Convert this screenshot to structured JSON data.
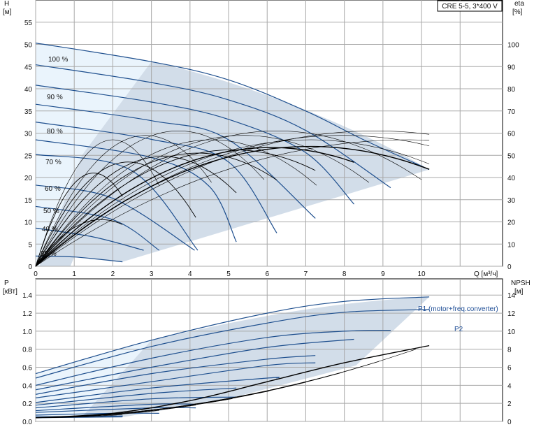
{
  "chart_data": [
    {
      "type": "line",
      "title": "CRE 5-5, 3*400 V",
      "xlabel": "Q [м³/ч]",
      "ylabel_left": "H [м]",
      "ylabel_right": "eta [%]",
      "x_ticks": [
        0,
        1,
        2,
        3,
        4,
        5,
        6,
        7,
        8,
        9,
        10
      ],
      "y_ticks": [
        0,
        5,
        10,
        15,
        20,
        25,
        30,
        35,
        40,
        45,
        50,
        55
      ],
      "eta_ticks": [
        0,
        10,
        20,
        30,
        40,
        50,
        60,
        70,
        80,
        90,
        100
      ],
      "xlim": [
        0,
        12.1
      ],
      "ylim": [
        0,
        60
      ],
      "eta_lim": [
        0,
        120
      ],
      "grid": true,
      "speeds": [
        "100 %",
        "90 %",
        "80 %",
        "70 %",
        "60 %",
        "50 %",
        "40 %",
        "30 %"
      ],
      "head_curves": [
        {
          "speed": 100,
          "points": [
            [
              0,
              50.3
            ],
            [
              3,
              46.1
            ],
            [
              5,
              42
            ],
            [
              7,
              35
            ],
            [
              8.5,
              28.5
            ],
            [
              10.2,
              21.8
            ]
          ]
        },
        {
          "speed": 95,
          "points": [
            [
              0,
              45.4
            ],
            [
              3,
              41.4
            ],
            [
              5,
              37.5
            ],
            [
              7,
              30.6
            ],
            [
              9.2,
              17.7
            ]
          ]
        },
        {
          "speed": 90,
          "points": [
            [
              0,
              40.8
            ],
            [
              3,
              37
            ],
            [
              5,
              33.1
            ],
            [
              7,
              25.6
            ],
            [
              8.25,
              14
            ]
          ]
        },
        {
          "speed": 85,
          "points": [
            [
              0,
              36.5
            ],
            [
              3,
              32.8
            ],
            [
              5,
              28.5
            ],
            [
              7.25,
              10.8
            ]
          ]
        },
        {
          "speed": 80,
          "points": [
            [
              0,
              32.5
            ],
            [
              3,
              28.6
            ],
            [
              5,
              23.5
            ],
            [
              6.25,
              7.5
            ]
          ]
        },
        {
          "speed": 75,
          "points": [
            [
              0,
              28.5
            ],
            [
              3,
              24.5
            ],
            [
              4.5,
              18
            ],
            [
              5.2,
              5.5
            ]
          ]
        },
        {
          "speed": 70,
          "points": [
            [
              0,
              25.2
            ],
            [
              2.5,
              21.5
            ],
            [
              4.2,
              3.6
            ]
          ]
        },
        {
          "speed": 60,
          "points": [
            [
              0,
              18.3
            ],
            [
              2,
              15.3
            ],
            [
              4.12,
              3.6
            ]
          ]
        },
        {
          "speed": 50,
          "points": [
            [
              0,
              13.5
            ],
            [
              2,
              10.5
            ],
            [
              3.2,
              3.6
            ]
          ]
        },
        {
          "speed": 40,
          "points": [
            [
              0,
              8.6
            ],
            [
              1.5,
              6.6
            ],
            [
              2.8,
              3.6
            ]
          ]
        },
        {
          "speed": 30,
          "points": [
            [
              0,
              2.3
            ],
            [
              1,
              2.1
            ],
            [
              2.25,
              1
            ]
          ]
        }
      ],
      "eta_curves_peak": [
        {
          "speed": 100,
          "peak_eta": 54,
          "peak_q": 7.1,
          "end_q": 10.2
        },
        {
          "speed": 90,
          "peak_eta": 53.5,
          "peak_q": 6.1,
          "end_q": 8.25
        },
        {
          "speed": 80,
          "peak_eta": 52.5,
          "peak_q": 5.1,
          "end_q": 7.25
        },
        {
          "speed": 70,
          "peak_eta": 51,
          "peak_q": 4.2,
          "end_q": 6.25
        },
        {
          "speed": 60,
          "peak_eta": 49.5,
          "peak_q": 3.3,
          "end_q": 5.2
        },
        {
          "speed": 50,
          "peak_eta": 47,
          "peak_q": 2.4,
          "end_q": 4.15
        },
        {
          "speed": 40,
          "peak_eta": 42,
          "peak_q": 1.5,
          "end_q": 2.25
        },
        {
          "speed": 30,
          "peak_eta": 21,
          "peak_q": 1.7,
          "end_q": 2.25
        }
      ]
    },
    {
      "type": "line",
      "xlabel": "",
      "ylabel_left": "P [кВт]",
      "ylabel_right": "NPSH [м]",
      "x_ticks": [
        0,
        1,
        2,
        3,
        4,
        5,
        6,
        7,
        8,
        9,
        10
      ],
      "p_ticks": [
        0.0,
        0.2,
        0.4,
        0.6,
        0.8,
        1.0,
        1.2,
        1.4
      ],
      "npsh_ticks": [
        0,
        2,
        4,
        6,
        8,
        10,
        12,
        14
      ],
      "xlim": [
        0,
        12.1
      ],
      "p_lim": [
        0,
        1.58
      ],
      "npsh_lim": [
        0,
        15.8
      ],
      "grid": true,
      "labels": [
        "P1 (motor+freq.converter)",
        "P2"
      ],
      "power_curves": [
        {
          "points": [
            [
              0,
              0.53
            ],
            [
              3,
              0.9
            ],
            [
              6,
              1.2
            ],
            [
              8,
              1.33
            ],
            [
              10.2,
              1.38
            ]
          ]
        },
        {
          "points": [
            [
              0,
              0.48
            ],
            [
              3,
              0.83
            ],
            [
              6,
              1.09
            ],
            [
              8,
              1.21
            ],
            [
              10.2,
              1.24
            ]
          ]
        },
        {
          "points": [
            [
              0,
              0.4
            ],
            [
              3,
              0.7
            ],
            [
              6,
              0.93
            ],
            [
              8,
              1.0
            ],
            [
              9.2,
              1.01
            ]
          ]
        },
        {
          "points": [
            [
              0,
              0.35
            ],
            [
              3,
              0.6
            ],
            [
              6,
              0.82
            ],
            [
              8.25,
              0.91
            ]
          ]
        },
        {
          "points": [
            [
              0,
              0.3
            ],
            [
              3,
              0.53
            ],
            [
              6,
              0.69
            ],
            [
              7.25,
              0.73
            ]
          ]
        },
        {
          "points": [
            [
              0,
              0.26
            ],
            [
              3,
              0.44
            ],
            [
              6,
              0.62
            ],
            [
              7.25,
              0.65
            ]
          ]
        },
        {
          "points": [
            [
              0,
              0.21
            ],
            [
              3,
              0.37
            ],
            [
              6,
              0.48
            ],
            [
              6.25,
              0.48
            ]
          ]
        },
        {
          "points": [
            [
              0,
              0.18
            ],
            [
              3,
              0.31
            ],
            [
              5.2,
              0.37
            ]
          ]
        },
        {
          "points": [
            [
              0,
              0.15
            ],
            [
              3,
              0.25
            ],
            [
              5.2,
              0.27
            ]
          ]
        },
        {
          "points": [
            [
              0,
              0.12
            ],
            [
              3,
              0.19
            ],
            [
              4.15,
              0.19
            ]
          ]
        },
        {
          "points": [
            [
              0,
              0.1
            ],
            [
              3,
              0.15
            ],
            [
              4.15,
              0.15
            ]
          ]
        },
        {
          "points": [
            [
              0,
              0.07
            ],
            [
              2,
              0.09
            ],
            [
              3.2,
              0.09
            ]
          ]
        },
        {
          "points": [
            [
              0,
              0.05
            ],
            [
              2,
              0.06
            ],
            [
              2.25,
              0.06
            ]
          ]
        },
        {
          "points": [
            [
              0,
              0.04
            ],
            [
              2.25,
              0.05
            ]
          ]
        }
      ],
      "npsh_curve": {
        "points": [
          [
            0,
            0.4
          ],
          [
            2,
            0.9
          ],
          [
            4,
            2.3
          ],
          [
            6,
            4.4
          ],
          [
            8,
            6.5
          ],
          [
            10.2,
            8.4
          ]
        ]
      }
    }
  ]
}
